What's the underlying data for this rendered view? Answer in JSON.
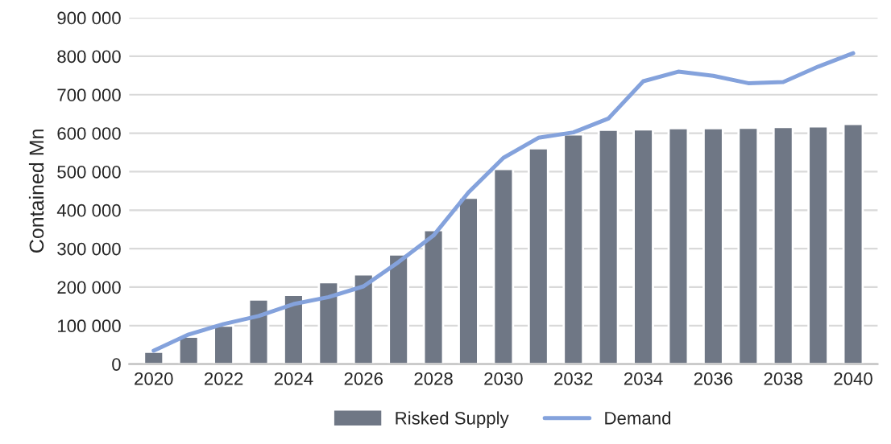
{
  "chart_data": {
    "type": "bar",
    "ylabel": "Contained Mn",
    "categories": [
      "2020",
      null,
      "2022",
      null,
      "2024",
      null,
      "2026",
      null,
      "2028",
      null,
      "2030",
      null,
      "2032",
      null,
      "2034",
      null,
      "2036",
      null,
      "2038",
      null,
      "2040"
    ],
    "series": [
      {
        "name": "Risked Supply",
        "color": "#6f7785",
        "values": [
          32000,
          71000,
          100000,
          168000,
          180000,
          213000,
          233000,
          285000,
          348000,
          432000,
          507000,
          561000,
          597000,
          609000,
          610000,
          613000,
          613000,
          614000,
          616000,
          618000,
          624000
        ]
      },
      {
        "name": "Demand",
        "type": "line",
        "color": "#84a2dc",
        "values": [
          35000,
          77000,
          104000,
          125000,
          156000,
          174000,
          202000,
          265000,
          334000,
          446000,
          536000,
          588000,
          602000,
          638000,
          735000,
          760000,
          749000,
          730000,
          733000,
          773000,
          808000
        ]
      }
    ],
    "ylim": [
      0,
      900000
    ],
    "yticks": [
      0,
      {
        "value": 100000,
        "label": "100 000"
      },
      {
        "value": 200000,
        "label": "200 000"
      },
      {
        "value": 300000,
        "label": "300 000"
      },
      {
        "value": 400000,
        "label": "400 000"
      },
      {
        "value": 500000,
        "label": "500 000"
      },
      {
        "value": 600000,
        "label": "600 000"
      },
      {
        "value": 700000,
        "label": "700 000"
      },
      {
        "value": 800000,
        "label": "800 000"
      },
      {
        "value": 900000,
        "label": "900 000"
      }
    ],
    "grid": "y",
    "legend": "bottom",
    "marker": "none"
  }
}
